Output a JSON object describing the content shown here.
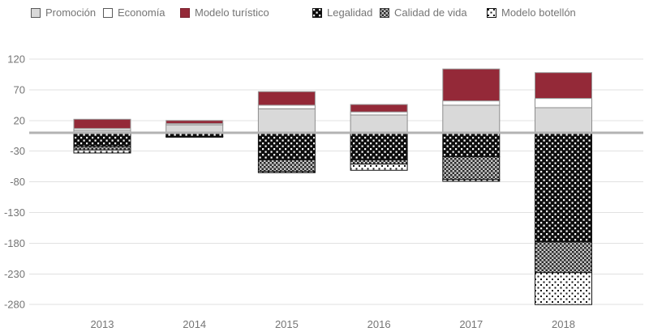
{
  "chart_data": {
    "type": "bar",
    "stacked": true,
    "title": "",
    "xlabel": "",
    "ylabel": "",
    "legend_position": "top",
    "grid": true,
    "categories": [
      "2013",
      "2014",
      "2015",
      "2016",
      "2017",
      "2018"
    ],
    "y_ticks": [
      120,
      70,
      20,
      -30,
      -80,
      -130,
      -180,
      -230,
      -280
    ],
    "ylim": [
      -300,
      140
    ],
    "series": [
      {
        "name": "Promoción",
        "key": "promocion",
        "swatch": "#d9d9d9",
        "pattern": "solid-light-gray",
        "values": [
          4,
          13,
          39,
          29,
          45,
          41
        ]
      },
      {
        "name": "Economía",
        "key": "economia",
        "swatch": "#ffffff",
        "pattern": "solid-white",
        "values": [
          3,
          2,
          6,
          5,
          7,
          15
        ]
      },
      {
        "name": "Modelo turístico",
        "key": "turistico",
        "swatch": "#942938",
        "pattern": "solid-dark-red",
        "values": [
          15,
          5,
          22,
          12,
          52,
          42
        ]
      },
      {
        "name": "Legalidad",
        "key": "legalidad",
        "swatch": "",
        "pattern": "white-dots-on-black",
        "values": [
          -22,
          -6,
          -44,
          -44,
          -39,
          -178
        ]
      },
      {
        "name": "Calidad de vida",
        "key": "calidad",
        "swatch": "",
        "pattern": "fine-gray-checker",
        "values": [
          -6,
          -1,
          -19,
          -7,
          -37,
          -50
        ]
      },
      {
        "name": "Modelo botellón",
        "key": "botellon",
        "swatch": "",
        "pattern": "black-dots-on-white",
        "values": [
          -5,
          0,
          -2,
          -10,
          -3,
          -52
        ]
      }
    ],
    "stack_totals_positive": [
      22,
      20,
      67,
      46,
      104,
      98
    ],
    "stack_totals_negative": [
      -33,
      -7,
      -65,
      -61,
      -79,
      -280
    ]
  },
  "colors": {
    "axis_text": "#757575",
    "gridline": "#e1e1e1",
    "zero_line": "#b3b3b3",
    "accent_red": "#942938"
  }
}
